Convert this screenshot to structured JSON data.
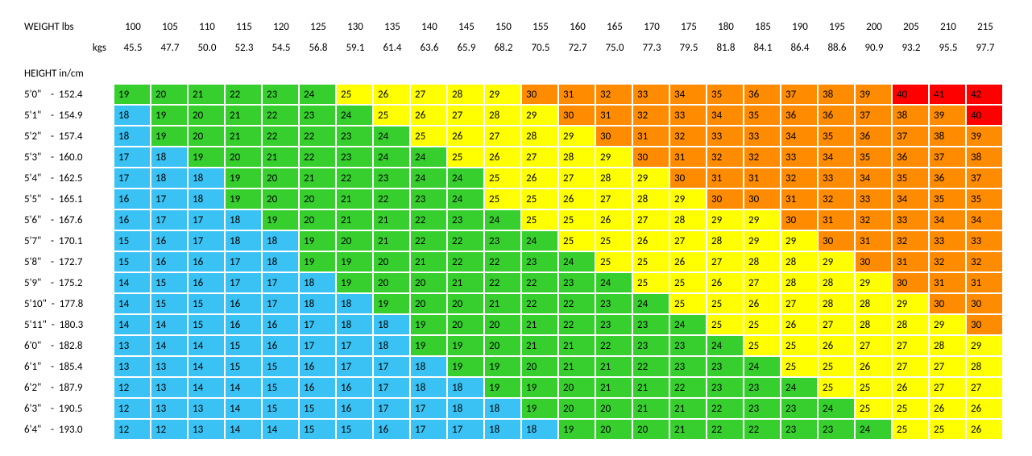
{
  "labels": {
    "weight_lbs": "WEIGHT lbs",
    "kgs": "kgs",
    "height": "HEIGHT in/cm"
  },
  "columns_lbs": [
    "100",
    "105",
    "110",
    "115",
    "120",
    "125",
    "130",
    "135",
    "140",
    "145",
    "150",
    "155",
    "160",
    "165",
    "170",
    "175",
    "180",
    "185",
    "190",
    "195",
    "200",
    "205",
    "210",
    "215"
  ],
  "columns_kgs": [
    "45.5",
    "47.7",
    "50.0",
    "52.3",
    "54.5",
    "56.8",
    "59.1",
    "61.4",
    "63.6",
    "65.9",
    "68.2",
    "70.5",
    "72.7",
    "75.0",
    "77.3",
    "79.5",
    "81.8",
    "84.1",
    "86.4",
    "88.6",
    "90.9",
    "93.2",
    "95.5",
    "97.7"
  ],
  "row_labels": [
    "5'0\"    -  152.4",
    "5'1\"    -  154.9",
    "5'2\"    -  157.4",
    "5'3\"    -  160.0",
    "5'4\"    -  162.5",
    "5'5\"    -  165.1",
    "5'6\"    -  167.6",
    "5'7\"    -  170.1",
    "5'8\"    -  172.7",
    "5'9\"    -  175.2",
    "5'10\"  -  177.8",
    "5'11\"  -  180.3",
    "6'0\"    -  182.8",
    "6'1\"    -  185.4",
    "6'2\"    -  187.9",
    "6'3\"    -  190.5",
    "6'4\"    -  193.0"
  ],
  "values": [
    [
      19,
      20,
      21,
      22,
      23,
      24,
      25,
      26,
      27,
      28,
      29,
      30,
      31,
      32,
      33,
      34,
      35,
      36,
      37,
      38,
      39,
      40,
      41,
      42
    ],
    [
      18,
      19,
      20,
      21,
      22,
      23,
      24,
      25,
      26,
      27,
      28,
      29,
      30,
      31,
      32,
      33,
      34,
      35,
      36,
      36,
      37,
      38,
      39,
      40
    ],
    [
      18,
      19,
      20,
      21,
      22,
      22,
      23,
      24,
      25,
      26,
      27,
      28,
      29,
      30,
      31,
      32,
      33,
      33,
      34,
      35,
      36,
      37,
      38,
      39
    ],
    [
      17,
      18,
      19,
      20,
      21,
      22,
      23,
      24,
      24,
      25,
      26,
      27,
      28,
      29,
      30,
      31,
      32,
      32,
      33,
      34,
      35,
      36,
      37,
      38
    ],
    [
      17,
      18,
      18,
      19,
      20,
      21,
      22,
      23,
      24,
      24,
      25,
      26,
      27,
      28,
      29,
      30,
      31,
      31,
      32,
      33,
      34,
      35,
      36,
      37
    ],
    [
      16,
      17,
      18,
      19,
      20,
      20,
      21,
      22,
      23,
      24,
      25,
      25,
      26,
      27,
      28,
      29,
      30,
      30,
      31,
      32,
      33,
      34,
      35,
      35
    ],
    [
      16,
      17,
      17,
      18,
      19,
      20,
      21,
      21,
      22,
      23,
      24,
      25,
      25,
      26,
      27,
      28,
      29,
      29,
      30,
      31,
      32,
      33,
      34,
      34
    ],
    [
      15,
      16,
      17,
      18,
      18,
      19,
      20,
      21,
      22,
      22,
      23,
      24,
      25,
      25,
      26,
      27,
      28,
      29,
      29,
      30,
      31,
      32,
      33,
      33
    ],
    [
      15,
      16,
      16,
      17,
      18,
      19,
      19,
      20,
      21,
      22,
      22,
      23,
      24,
      25,
      25,
      26,
      27,
      28,
      28,
      29,
      30,
      31,
      32,
      32
    ],
    [
      14,
      15,
      16,
      17,
      17,
      18,
      19,
      20,
      20,
      21,
      22,
      22,
      23,
      24,
      25,
      25,
      26,
      27,
      28,
      28,
      29,
      30,
      31,
      31
    ],
    [
      14,
      15,
      15,
      16,
      17,
      18,
      18,
      19,
      20,
      20,
      21,
      22,
      22,
      23,
      24,
      25,
      25,
      26,
      27,
      28,
      28,
      29,
      30,
      30
    ],
    [
      14,
      14,
      15,
      16,
      16,
      17,
      18,
      18,
      19,
      20,
      20,
      21,
      22,
      23,
      23,
      24,
      25,
      25,
      26,
      27,
      28,
      28,
      29,
      30
    ],
    [
      13,
      14,
      14,
      15,
      16,
      17,
      17,
      18,
      19,
      19,
      20,
      21,
      21,
      22,
      23,
      23,
      24,
      25,
      25,
      26,
      27,
      27,
      28,
      29
    ],
    [
      13,
      13,
      14,
      15,
      15,
      16,
      17,
      17,
      18,
      19,
      19,
      20,
      21,
      21,
      22,
      23,
      23,
      24,
      25,
      25,
      26,
      27,
      27,
      28
    ],
    [
      12,
      13,
      14,
      14,
      15,
      16,
      16,
      17,
      18,
      18,
      19,
      19,
      20,
      21,
      21,
      22,
      23,
      23,
      24,
      25,
      25,
      26,
      27,
      27
    ],
    [
      12,
      13,
      13,
      14,
      15,
      15,
      16,
      17,
      17,
      18,
      18,
      19,
      20,
      20,
      21,
      21,
      22,
      23,
      23,
      24,
      25,
      25,
      26,
      26
    ],
    [
      12,
      12,
      13,
      14,
      14,
      15,
      15,
      16,
      17,
      17,
      18,
      18,
      19,
      20,
      20,
      21,
      22,
      22,
      23,
      23,
      24,
      25,
      25,
      26
    ]
  ],
  "colors": {
    "underweight": "#39c2f3",
    "normal": "#36cf2e",
    "overweight": "#ffff00",
    "obese": "#ff8b00",
    "severe": "#fe0000",
    "background": "#ffffff",
    "text": "#000000"
  },
  "thresholds": {
    "underweight_max": 18,
    "normal_max": 24,
    "overweight_max": 29,
    "obese_max": 39
  },
  "font": {
    "family": "Calibri, Tahoma, Arial, sans-serif",
    "size_pt": 10
  }
}
